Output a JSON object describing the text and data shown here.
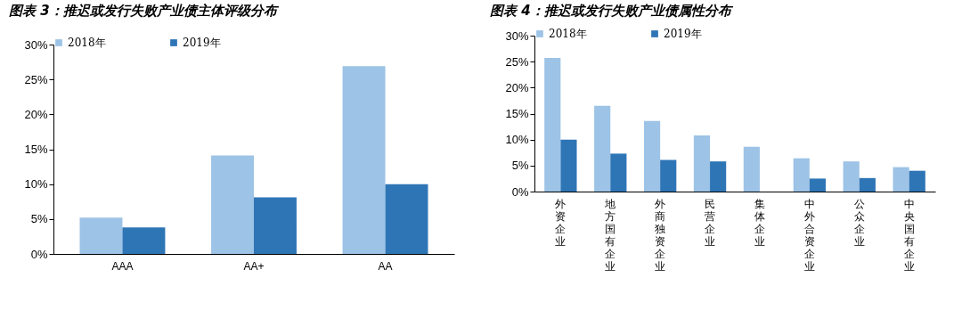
{
  "chart_data": [
    {
      "type": "bar",
      "title": "图表 3：推迟或发行失败产业债主体评级分布",
      "categories": [
        "AAA",
        "AA+",
        "AA"
      ],
      "series": [
        {
          "name": "2018年",
          "color": "#9dc3e6",
          "values": [
            5.2,
            14.1,
            26.9
          ]
        },
        {
          "name": "2019年",
          "color": "#2e75b6",
          "values": [
            3.8,
            8.1,
            10.0
          ]
        }
      ],
      "ylim": [
        0,
        30
      ],
      "yticks": [
        {
          "value": 0,
          "label": "0%"
        },
        {
          "value": 5,
          "label": "5%"
        },
        {
          "value": 10,
          "label": "10%"
        },
        {
          "value": 15,
          "label": "15%"
        },
        {
          "value": 20,
          "label": "20%"
        },
        {
          "value": 25,
          "label": "25%"
        },
        {
          "value": 30,
          "label": "30%"
        }
      ],
      "grid": false,
      "legend": "top"
    },
    {
      "type": "bar",
      "title": "图表 4：推迟或发行失败产业债属性分布",
      "categories": [
        "外资企业",
        "地方国有企业",
        "外商独资企业",
        "民营企业",
        "集体企业",
        "中外合资企业",
        "公众企业",
        "中央国有企业"
      ],
      "series": [
        {
          "name": "2018年",
          "color": "#9dc3e6",
          "values": [
            25.7,
            16.5,
            13.6,
            10.8,
            8.6,
            6.4,
            5.8,
            4.7
          ]
        },
        {
          "name": "2019年",
          "color": "#2e75b6",
          "values": [
            10.0,
            7.3,
            6.1,
            5.8,
            null,
            2.5,
            2.6,
            4.0
          ]
        }
      ],
      "ylim": [
        0,
        30
      ],
      "yticks": [
        {
          "value": 0,
          "label": "0%"
        },
        {
          "value": 5,
          "label": "5%"
        },
        {
          "value": 10,
          "label": "10%"
        },
        {
          "value": 15,
          "label": "15%"
        },
        {
          "value": 20,
          "label": "20%"
        },
        {
          "value": 25,
          "label": "25%"
        },
        {
          "value": 30,
          "label": "30%"
        }
      ],
      "grid": false,
      "legend": "top"
    }
  ]
}
